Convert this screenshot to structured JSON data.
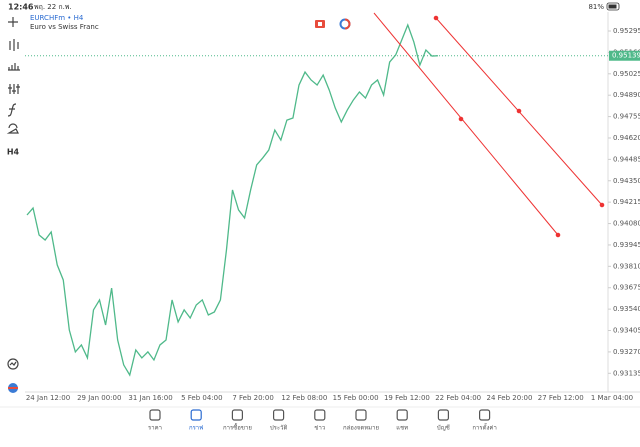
{
  "status_bar": {
    "time": "12:46",
    "date": "พฤ. 22 ก.พ.",
    "battery": "81%"
  },
  "symbol": {
    "name": "EURCHFm • H4",
    "description": "Euro vs Swiss Franc"
  },
  "toolbar": {
    "timeframe": "H4"
  },
  "chart_data": {
    "type": "line",
    "color": "#4fb98a",
    "values": [
      0.94134,
      0.94178,
      0.94008,
      0.93976,
      0.94027,
      0.93819,
      0.93724,
      0.93408,
      0.9327,
      0.93314,
      0.93232,
      0.93535,
      0.93598,
      0.9344,
      0.93673,
      0.93345,
      0.93188,
      0.93124,
      0.93282,
      0.93232,
      0.9327,
      0.93219,
      0.93314,
      0.93345,
      0.93598,
      0.93459,
      0.93535,
      0.93484,
      0.93566,
      0.93598,
      0.93503,
      0.93522,
      0.93598,
      0.93913,
      0.94292,
      0.94166,
      0.94115,
      0.94292,
      0.9445,
      0.94494,
      0.94544,
      0.9467,
      0.94607,
      0.94733,
      0.94746,
      0.94954,
      0.95036,
      0.94986,
      0.94954,
      0.95017,
      0.94923,
      0.94809,
      0.94721,
      0.94797,
      0.9486,
      0.9491,
      0.94872,
      0.94954,
      0.94986,
      0.94891,
      0.95099,
      0.95144,
      0.95238,
      0.95333,
      0.95226,
      0.9508,
      0.95175,
      0.95137,
      0.95139
    ],
    "current_price": 0.95139,
    "ylim": [
      0.93017,
      0.95415
    ],
    "yticks": [
      0.95295,
      {
        "value": 0.9516,
        "label": "0.95160"
      },
      0.95025,
      {
        "value": 0.9489,
        "label": "0.94890"
      },
      0.94755,
      {
        "value": 0.9462,
        "label": "0.94620"
      },
      0.94485,
      {
        "value": 0.9435,
        "label": "0.94350"
      },
      0.94215,
      {
        "value": 0.9408,
        "label": "0.94080"
      },
      0.93945,
      {
        "value": 0.9381,
        "label": "0.93810"
      },
      0.93675,
      {
        "value": 0.9354,
        "label": "0.93540"
      },
      0.93405,
      {
        "value": 0.9327,
        "label": "0.93270"
      },
      0.93135
    ],
    "xticks": [
      "24 Jan 12:00",
      "29 Jan 00:00",
      "31 Jan 16:00",
      "5 Feb 04:00",
      "7 Feb 20:00",
      "12 Feb 08:00",
      "15 Feb 00:00",
      "19 Feb 12:00",
      "22 Feb 04:00",
      "24 Feb 20:00",
      "27 Feb 12:00",
      "1 Mar 04:00"
    ]
  },
  "nav": {
    "active": 1,
    "tabs": [
      "ราคา",
      "กราฟ",
      "การซื้อขาย",
      "ประวัติ",
      "ข่าว",
      "กล่องจดหมาย",
      "แชท",
      "บัญชี",
      "การตั้งค่า"
    ]
  }
}
